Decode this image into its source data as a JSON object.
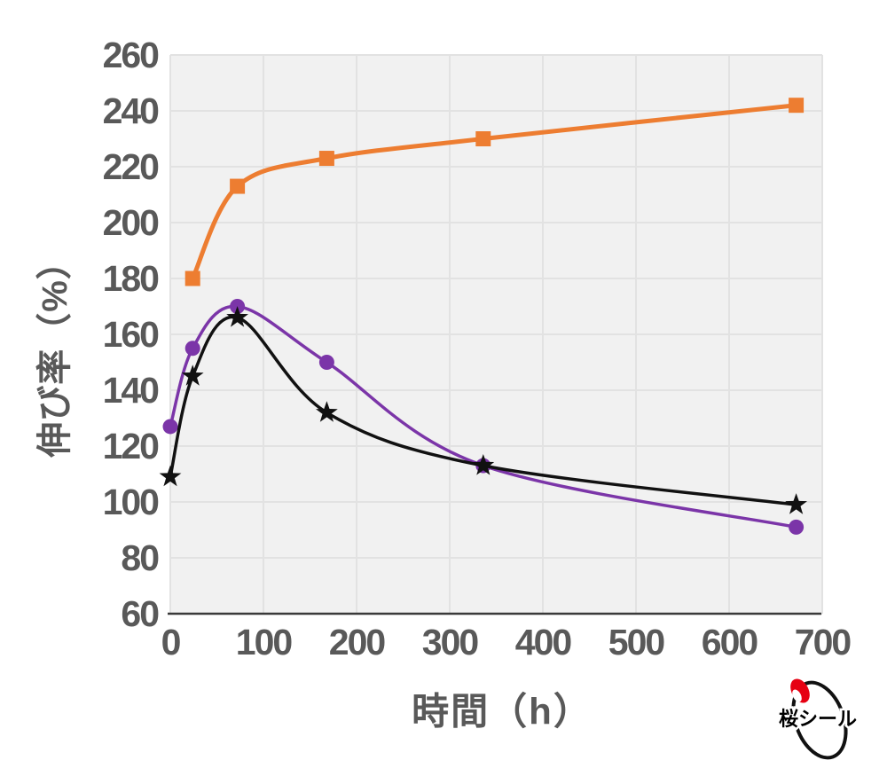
{
  "chart_data": {
    "type": "line",
    "title": "",
    "xlabel": "時間（h）",
    "ylabel": "伸び率（%）",
    "xlim": [
      0,
      700
    ],
    "ylim": [
      60,
      260
    ],
    "xticks": [
      0,
      100,
      200,
      300,
      400,
      500,
      600,
      700
    ],
    "yticks": [
      60,
      80,
      100,
      120,
      140,
      160,
      180,
      200,
      220,
      240,
      260
    ],
    "grid": true,
    "legend": "none",
    "smooth": true,
    "series": [
      {
        "name": "orange-square-series",
        "color": "#ED7D31",
        "marker": "square",
        "line_width": 5,
        "points": [
          [
            24,
            180
          ],
          [
            72,
            213
          ],
          [
            168,
            223
          ],
          [
            336,
            230
          ],
          [
            672,
            242
          ]
        ]
      },
      {
        "name": "purple-circle-series",
        "color": "#7B35A8",
        "marker": "circle",
        "line_width": 3.5,
        "points": [
          [
            0,
            127
          ],
          [
            24,
            155
          ],
          [
            72,
            170
          ],
          [
            168,
            150
          ],
          [
            336,
            113
          ],
          [
            672,
            91
          ]
        ]
      },
      {
        "name": "black-star-series",
        "color": "#111111",
        "marker": "star",
        "line_width": 3.5,
        "points": [
          [
            0,
            109
          ],
          [
            24,
            145
          ],
          [
            72,
            166
          ],
          [
            168,
            132
          ],
          [
            336,
            113
          ],
          [
            672,
            99
          ]
        ]
      }
    ]
  },
  "colors": {
    "plot_background": "#F1F1F1",
    "gridline": "#E2E2E2",
    "axis_line": "#3A3A3A",
    "tick_text": "#595959"
  },
  "logo": {
    "text": "桜シール",
    "accent_color": "#E60012",
    "ring_color": "#111111"
  }
}
